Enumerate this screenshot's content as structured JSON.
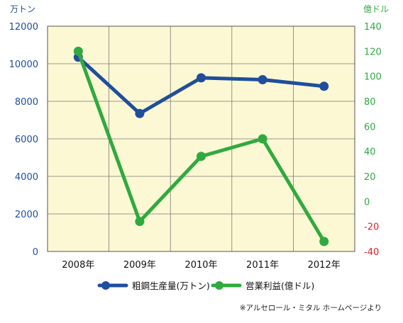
{
  "chart_data": {
    "type": "line",
    "categories": [
      "2008年",
      "2009年",
      "2010年",
      "2011年",
      "2012年"
    ],
    "left_axis": {
      "unit_label": "万トン",
      "ylim": [
        0,
        12000
      ],
      "ticks": [
        "0",
        "2000",
        "4000",
        "6000",
        "8000",
        "10000",
        "12000"
      ]
    },
    "right_axis": {
      "unit_label": "億ドル",
      "ylim": [
        -40,
        140
      ],
      "ticks": [
        "-40",
        "-20",
        "0",
        "20",
        "40",
        "60",
        "80",
        "100",
        "120",
        "140"
      ]
    },
    "series": [
      {
        "name": "粗鋼生産量(万トン)",
        "axis": "left",
        "color": "#1f4e9c",
        "values": [
          10350,
          7350,
          9250,
          9150,
          8800
        ]
      },
      {
        "name": "営業利益(億ドル)",
        "axis": "right",
        "color": "#2faa3f",
        "values": [
          120,
          -16,
          36,
          50,
          -32
        ]
      }
    ],
    "grid": true,
    "legend_position": "bottom-center"
  },
  "colors": {
    "plot_bg": "#fdf8d4",
    "left_axis_text": "#1f4e9c",
    "right_axis_text": "#2faa3f",
    "negative_tick": "#e0202a",
    "gridline": "#777777"
  },
  "footnote": "※アルセロール・ミタル ホームページより"
}
